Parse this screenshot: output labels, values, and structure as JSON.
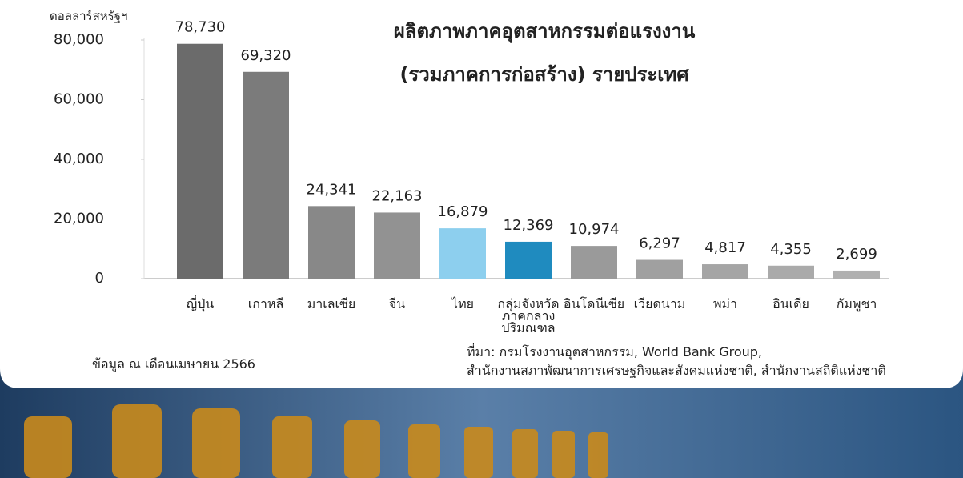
{
  "chart_data": {
    "type": "bar",
    "title": "ผลิตภาพภาคอุตสาหกรรมต่อแรงงาน\n(รวมภาคการก่อสร้าง) รายประเทศ",
    "y_label": "ดอลลาร์สหรัฐฯ",
    "categories": [
      "ญี่ปุ่น",
      "เกาหลี",
      "มาเลเซีย",
      "จีน",
      "ไทย",
      "กลุ่มจังหวัด\nภาคกลาง\nปริมณฑล",
      "อินโดนีเซีย",
      "เวียดนาม",
      "พม่า",
      "อินเดีย",
      "กัมพูชา"
    ],
    "values": [
      78730,
      69320,
      24341,
      22163,
      16879,
      12369,
      10974,
      6297,
      4817,
      4355,
      2699
    ],
    "value_labels": [
      "78,730",
      "69,320",
      "24,341",
      "22,163",
      "16,879",
      "12,369",
      "10,974",
      "6,297",
      "4,817",
      "4,355",
      "2,699"
    ],
    "colors": [
      "#6b6b6b",
      "#7b7b7b",
      "#888888",
      "#929292",
      "#8dcfee",
      "#1f8bbf",
      "#9a9a9a",
      "#a0a0a0",
      "#a5a5a5",
      "#aaaaaa",
      "#b0b0b0"
    ],
    "ylim": [
      0,
      80000
    ],
    "yticks": [
      0,
      {
        "value": 20000,
        "label": "20,000"
      },
      {
        "value": 40000,
        "label": "40,000"
      },
      {
        "value": 60000,
        "label": "60,000"
      },
      {
        "value": 80000,
        "label": "80,000"
      }
    ],
    "note": "ข้อมูล ณ เดือนเมษายน 2566",
    "source": "ที่มา: กรมโรงงานอุตสาหกรรม, World Bank Group,\nสำนักงานสภาพัฒนาการเศรษฐกิจและสังคมแห่งชาติ, สำนักงานสถิติแห่งชาติ"
  }
}
